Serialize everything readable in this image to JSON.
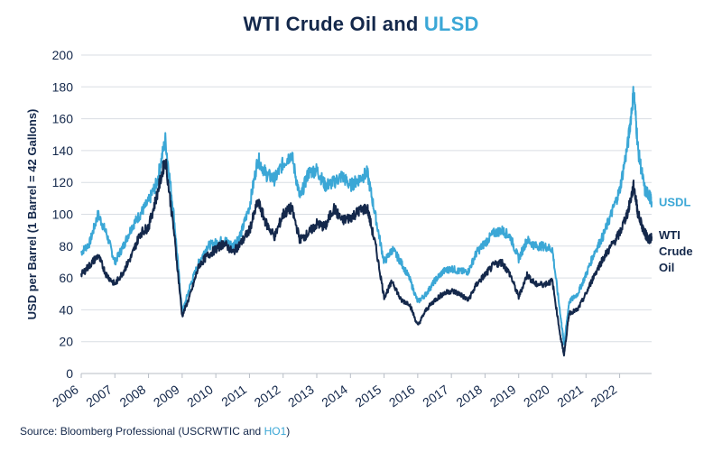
{
  "chart_data": {
    "type": "line",
    "title_part1": "WTI Crude Oil",
    "title_connector": " and ",
    "title_part2": "ULSD",
    "ylabel": "USD per Barrel (1 Barrel = 42 Gallons)",
    "xlabel": "",
    "ylim": [
      0,
      200
    ],
    "yticks": [
      "0",
      "20",
      "40",
      "60",
      "80",
      "100",
      "120",
      "140",
      "160",
      "180",
      "200"
    ],
    "xlim": [
      2006.0,
      2022.95
    ],
    "xticks": [
      "2006",
      "2007",
      "2008",
      "2009",
      "2010",
      "2011",
      "2012",
      "2013",
      "2014",
      "2015",
      "2016",
      "2017",
      "2018",
      "2019",
      "2020",
      "2021",
      "2022"
    ],
    "grid": "horizontal",
    "colors": {
      "wti": "#14284b",
      "ulsd": "#3ba7d6",
      "text": "#14284b"
    },
    "series": [
      {
        "name": "USDL",
        "label_lines": [
          "USDL"
        ],
        "color": "#3ba7d6",
        "points": [
          [
            2006.0,
            76
          ],
          [
            2006.25,
            82
          ],
          [
            2006.5,
            100
          ],
          [
            2006.75,
            88
          ],
          [
            2007.0,
            70
          ],
          [
            2007.25,
            80
          ],
          [
            2007.5,
            92
          ],
          [
            2007.75,
            100
          ],
          [
            2008.0,
            108
          ],
          [
            2008.25,
            120
          ],
          [
            2008.5,
            147
          ],
          [
            2008.75,
            100
          ],
          [
            2009.0,
            38
          ],
          [
            2009.25,
            56
          ],
          [
            2009.5,
            70
          ],
          [
            2009.75,
            80
          ],
          [
            2010.0,
            82
          ],
          [
            2010.25,
            84
          ],
          [
            2010.5,
            80
          ],
          [
            2010.75,
            88
          ],
          [
            2011.0,
            105
          ],
          [
            2011.25,
            135
          ],
          [
            2011.5,
            125
          ],
          [
            2011.75,
            122
          ],
          [
            2012.0,
            132
          ],
          [
            2012.25,
            138
          ],
          [
            2012.5,
            110
          ],
          [
            2012.75,
            126
          ],
          [
            2013.0,
            128
          ],
          [
            2013.25,
            118
          ],
          [
            2013.5,
            120
          ],
          [
            2013.75,
            124
          ],
          [
            2014.0,
            118
          ],
          [
            2014.25,
            122
          ],
          [
            2014.5,
            126
          ],
          [
            2014.75,
            98
          ],
          [
            2015.0,
            70
          ],
          [
            2015.25,
            78
          ],
          [
            2015.5,
            70
          ],
          [
            2015.75,
            60
          ],
          [
            2016.0,
            45
          ],
          [
            2016.25,
            50
          ],
          [
            2016.5,
            58
          ],
          [
            2016.75,
            64
          ],
          [
            2017.0,
            66
          ],
          [
            2017.25,
            64
          ],
          [
            2017.5,
            64
          ],
          [
            2017.75,
            76
          ],
          [
            2018.0,
            82
          ],
          [
            2018.25,
            88
          ],
          [
            2018.5,
            90
          ],
          [
            2018.75,
            86
          ],
          [
            2019.0,
            72
          ],
          [
            2019.25,
            84
          ],
          [
            2019.5,
            80
          ],
          [
            2019.75,
            80
          ],
          [
            2020.0,
            78
          ],
          [
            2020.25,
            35
          ],
          [
            2020.35,
            18
          ],
          [
            2020.5,
            45
          ],
          [
            2020.75,
            50
          ],
          [
            2021.0,
            62
          ],
          [
            2021.25,
            76
          ],
          [
            2021.5,
            86
          ],
          [
            2021.75,
            100
          ],
          [
            2022.0,
            115
          ],
          [
            2022.25,
            145
          ],
          [
            2022.42,
            178
          ],
          [
            2022.55,
            140
          ],
          [
            2022.75,
            115
          ],
          [
            2022.88,
            112
          ],
          [
            2022.95,
            108
          ]
        ]
      },
      {
        "name": "WTI Crude Oil",
        "label_lines": [
          "WTI",
          "Crude",
          "Oil"
        ],
        "color": "#14284b",
        "points": [
          [
            2006.0,
            62
          ],
          [
            2006.25,
            68
          ],
          [
            2006.5,
            74
          ],
          [
            2006.75,
            62
          ],
          [
            2007.0,
            56
          ],
          [
            2007.25,
            64
          ],
          [
            2007.5,
            74
          ],
          [
            2007.75,
            88
          ],
          [
            2008.0,
            92
          ],
          [
            2008.25,
            112
          ],
          [
            2008.5,
            135
          ],
          [
            2008.75,
            90
          ],
          [
            2009.0,
            36
          ],
          [
            2009.25,
            50
          ],
          [
            2009.5,
            68
          ],
          [
            2009.75,
            74
          ],
          [
            2010.0,
            78
          ],
          [
            2010.25,
            82
          ],
          [
            2010.5,
            76
          ],
          [
            2010.75,
            82
          ],
          [
            2011.0,
            90
          ],
          [
            2011.25,
            108
          ],
          [
            2011.5,
            94
          ],
          [
            2011.75,
            86
          ],
          [
            2012.0,
            100
          ],
          [
            2012.25,
            104
          ],
          [
            2012.5,
            84
          ],
          [
            2012.75,
            88
          ],
          [
            2013.0,
            94
          ],
          [
            2013.25,
            92
          ],
          [
            2013.5,
            104
          ],
          [
            2013.75,
            96
          ],
          [
            2014.0,
            98
          ],
          [
            2014.25,
            102
          ],
          [
            2014.5,
            104
          ],
          [
            2014.75,
            80
          ],
          [
            2015.0,
            48
          ],
          [
            2015.25,
            58
          ],
          [
            2015.5,
            46
          ],
          [
            2015.75,
            44
          ],
          [
            2016.0,
            30
          ],
          [
            2016.25,
            40
          ],
          [
            2016.5,
            46
          ],
          [
            2016.75,
            50
          ],
          [
            2017.0,
            52
          ],
          [
            2017.25,
            50
          ],
          [
            2017.5,
            46
          ],
          [
            2017.75,
            56
          ],
          [
            2018.0,
            62
          ],
          [
            2018.25,
            68
          ],
          [
            2018.5,
            70
          ],
          [
            2018.75,
            62
          ],
          [
            2019.0,
            48
          ],
          [
            2019.25,
            62
          ],
          [
            2019.5,
            56
          ],
          [
            2019.75,
            56
          ],
          [
            2020.0,
            58
          ],
          [
            2020.25,
            22
          ],
          [
            2020.35,
            12
          ],
          [
            2020.5,
            38
          ],
          [
            2020.75,
            40
          ],
          [
            2021.0,
            50
          ],
          [
            2021.25,
            62
          ],
          [
            2021.5,
            72
          ],
          [
            2021.75,
            80
          ],
          [
            2022.0,
            88
          ],
          [
            2022.25,
            102
          ],
          [
            2022.42,
            118
          ],
          [
            2022.55,
            100
          ],
          [
            2022.75,
            88
          ],
          [
            2022.88,
            84
          ],
          [
            2022.95,
            86
          ]
        ]
      }
    ]
  },
  "source": {
    "prefix": "Source: Bloomberg Professional (USCRWTIC and ",
    "highlight": "HO1",
    "suffix": ")"
  }
}
